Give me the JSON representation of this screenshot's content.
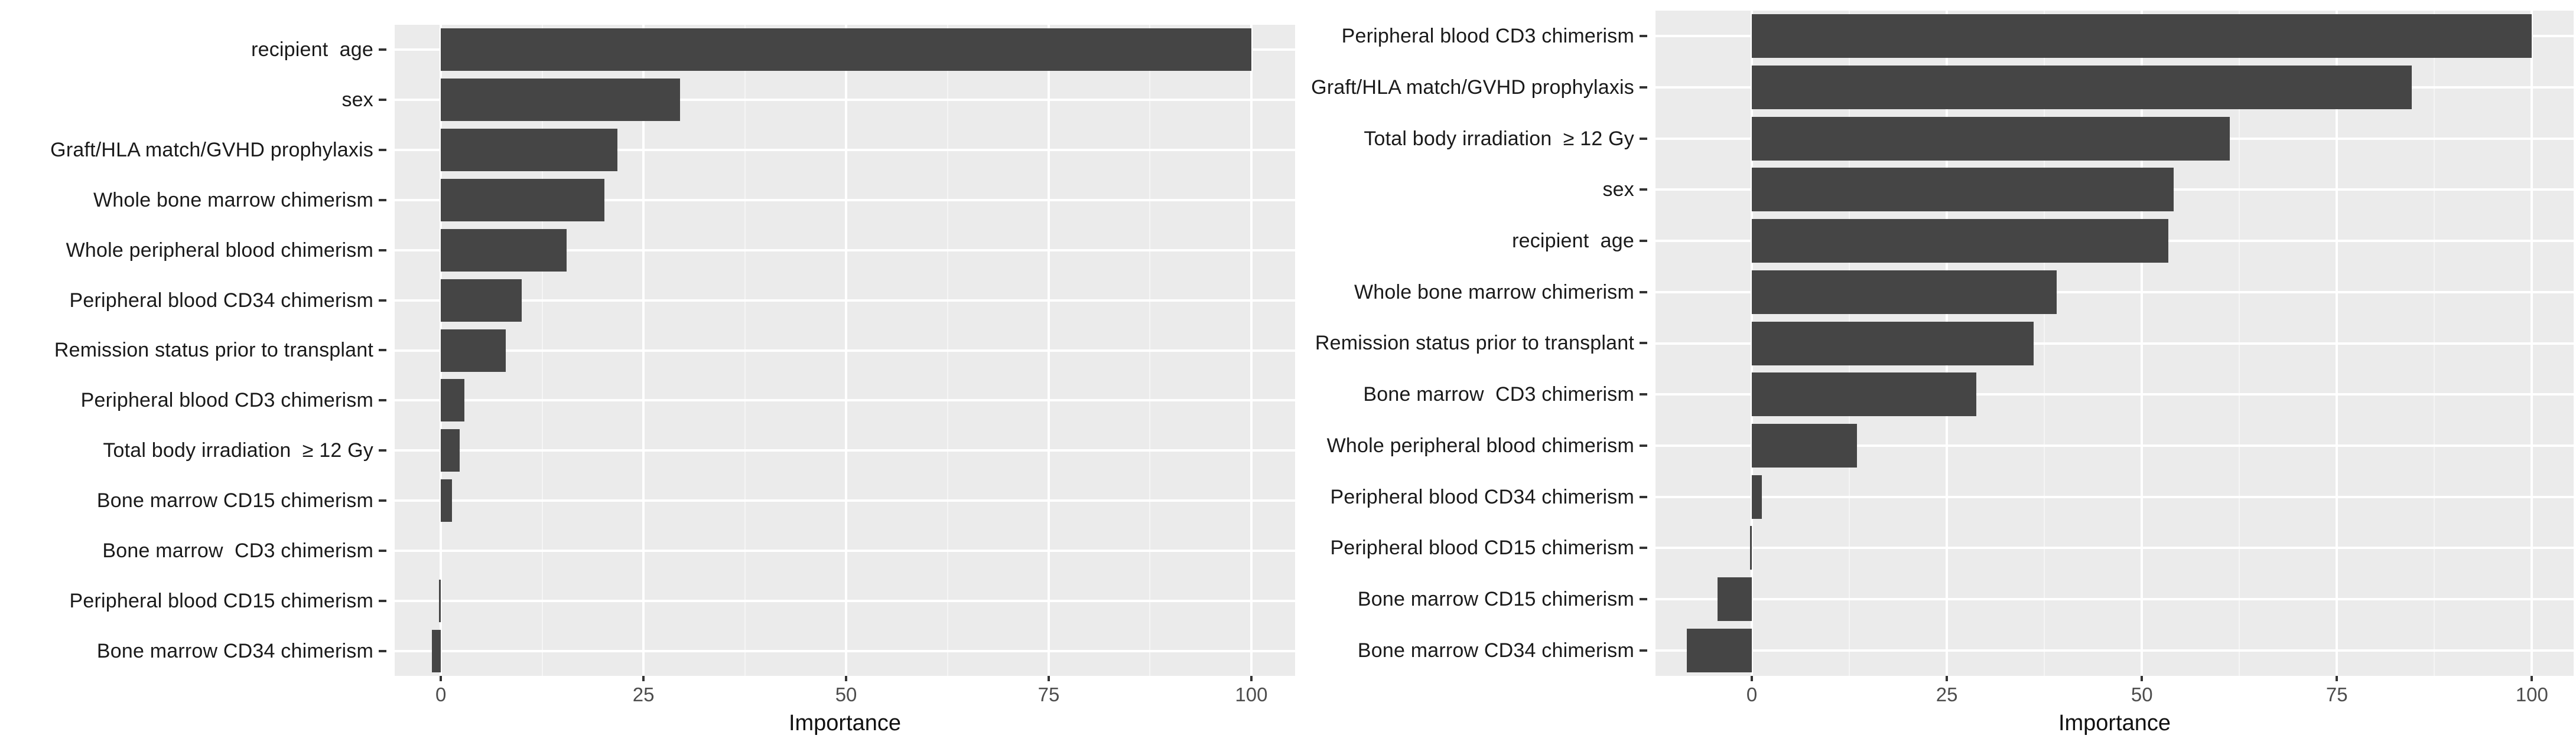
{
  "figure": {
    "background": "#ffffff",
    "panel_background": "#ebebeb",
    "grid_major_color": "#ffffff",
    "grid_minor_color": "#f5f5f5",
    "bar_color": "#454545",
    "tick_mark_color": "#333333",
    "axis_tick_text_color": "#4d4d4d",
    "category_label_color": "#1a1a1a",
    "axis_title_color": "#111111"
  },
  "chart_data": [
    {
      "id": "left-panel",
      "type": "bar",
      "orientation": "horizontal",
      "title": "",
      "xlabel": "Importance",
      "x_ticks": [
        0,
        25,
        50,
        75,
        100
      ],
      "grid_minor": [
        12.5,
        37.5,
        62.5,
        87.5
      ],
      "xlim": [
        -5.7,
        105.4
      ],
      "grid": "on",
      "legend": "none",
      "categories": [
        "recipient  age",
        "sex",
        "Graft/HLA match/GVHD prophylaxis",
        "Whole bone marrow chimerism",
        "Whole peripheral blood chimerism",
        "Peripheral blood CD34 chimerism",
        "Remission status prior to transplant",
        "Peripheral blood CD3 chimerism",
        "Total body irradiation  ≥ 12 Gy",
        "Bone marrow CD15 chimerism",
        "Bone marrow  CD3 chimerism",
        "Peripheral blood CD15 chimerism",
        "Bone marrow CD34 chimerism"
      ],
      "values": [
        100,
        29.5,
        21.8,
        20.2,
        15.5,
        10,
        8,
        2.9,
        2.3,
        1.4,
        0,
        -0.2,
        -1.1
      ]
    },
    {
      "id": "right-panel",
      "type": "bar",
      "orientation": "horizontal",
      "title": "",
      "xlabel": "Importance",
      "x_ticks": [
        0,
        25,
        50,
        75,
        100
      ],
      "grid_minor": [
        12.5,
        37.5,
        62.5,
        87.5
      ],
      "xlim": [
        -12.35,
        105.35
      ],
      "grid": "on",
      "legend": "none",
      "categories": [
        "Peripheral blood CD3 chimerism",
        "Graft/HLA match/GVHD prophylaxis",
        "Total body irradiation  ≥ 12 Gy",
        "sex",
        "recipient  age",
        "Whole bone marrow chimerism",
        "Remission status prior to transplant",
        "Bone marrow  CD3 chimerism",
        "Whole peripheral blood chimerism",
        "Peripheral blood CD34 chimerism",
        "Peripheral blood CD15 chimerism",
        "Bone marrow CD15 chimerism",
        "Bone marrow CD34 chimerism"
      ],
      "values": [
        100,
        84.6,
        61.3,
        54.1,
        53.4,
        39.1,
        36.1,
        28.8,
        13.5,
        1.3,
        -0.2,
        -4.4,
        -8.3
      ]
    }
  ]
}
